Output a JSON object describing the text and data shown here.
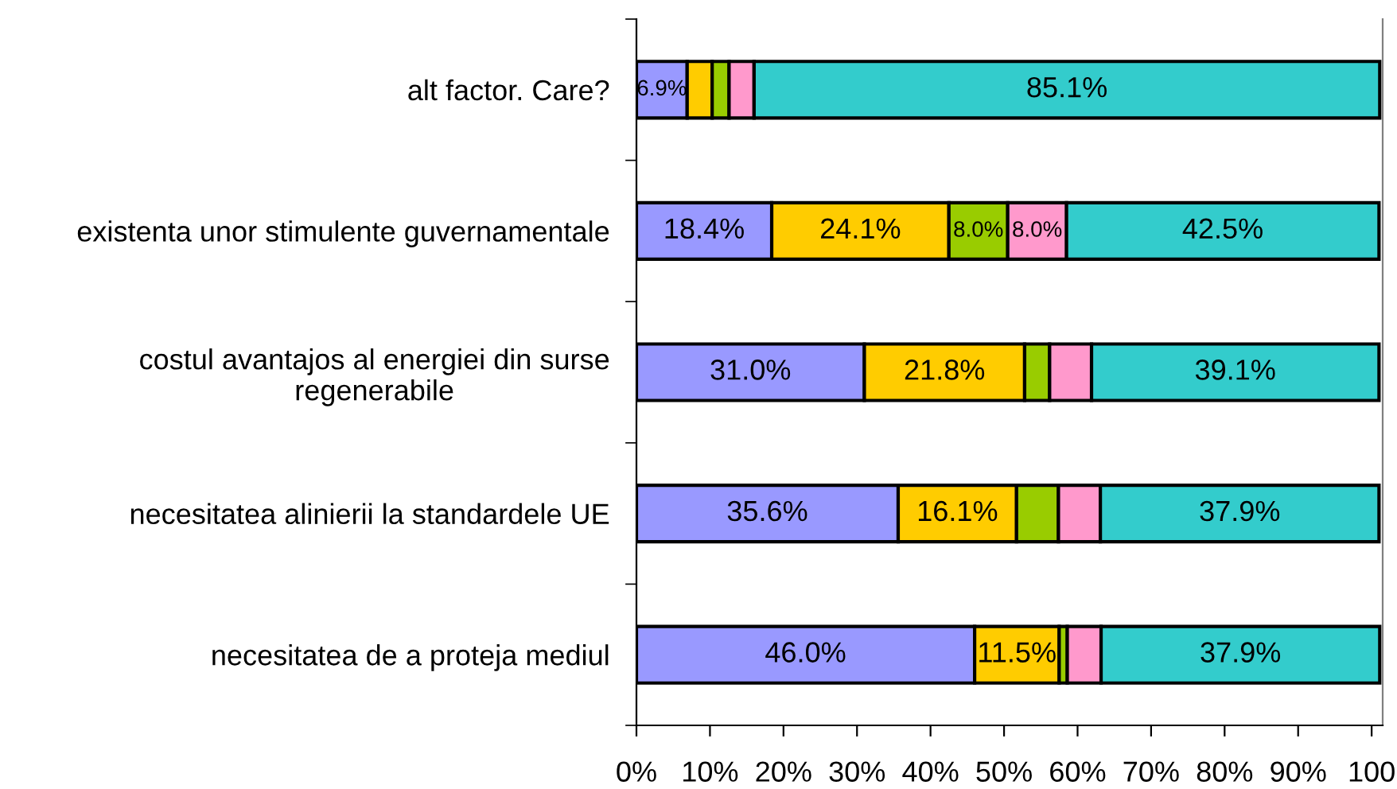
{
  "chart_data": {
    "type": "bar",
    "orientation": "horizontal",
    "stacked": true,
    "categories": [
      "alt factor. Care?",
      "existenta unor stimulente guvernamentale",
      "costul avantajos al energiei din surse regenerabile",
      "necesitatea alinierii la standardele UE",
      "necesitatea de a proteja mediul"
    ],
    "series": [
      {
        "color": "#9999ff",
        "values": [
          6.9,
          18.4,
          31.0,
          35.6,
          46.0
        ],
        "value_labels": [
          "6.9%",
          "18.4%",
          "31.0%",
          "35.6%",
          "46.0%"
        ]
      },
      {
        "color": "#ffcc00",
        "values": [
          3.4,
          24.1,
          21.8,
          16.1,
          11.5
        ],
        "value_labels": [
          null,
          "24.1%",
          "21.8%",
          "16.1%",
          "11.5%"
        ]
      },
      {
        "color": "#99cc00",
        "values": [
          2.3,
          8.0,
          3.4,
          5.7,
          1.1
        ],
        "value_labels": [
          null,
          "8.0%",
          null,
          null,
          null
        ]
      },
      {
        "color": "#ff99cc",
        "values": [
          3.4,
          8.0,
          5.7,
          5.7,
          4.6
        ],
        "value_labels": [
          null,
          "8.0%",
          null,
          null,
          null
        ]
      },
      {
        "color": "#33cccc",
        "values": [
          85.1,
          42.5,
          39.1,
          37.9,
          37.9
        ],
        "value_labels": [
          "85.1%",
          "42.5%",
          "39.1%",
          "37.9%",
          "37.9%"
        ]
      }
    ],
    "xlim": [
      0,
      101.5
    ],
    "xticks": [
      {
        "value": 0,
        "label": "0%"
      },
      {
        "value": 10,
        "label": "10%"
      },
      {
        "value": 20,
        "label": "20%"
      },
      {
        "value": 30,
        "label": "30%"
      },
      {
        "value": 40,
        "label": "40%"
      },
      {
        "value": 50,
        "label": "50%"
      },
      {
        "value": 60,
        "label": "60%"
      },
      {
        "value": 70,
        "label": "70%"
      },
      {
        "value": 80,
        "label": "80%"
      },
      {
        "value": 90,
        "label": "90%"
      },
      {
        "value": 100,
        "label": "100"
      }
    ]
  }
}
